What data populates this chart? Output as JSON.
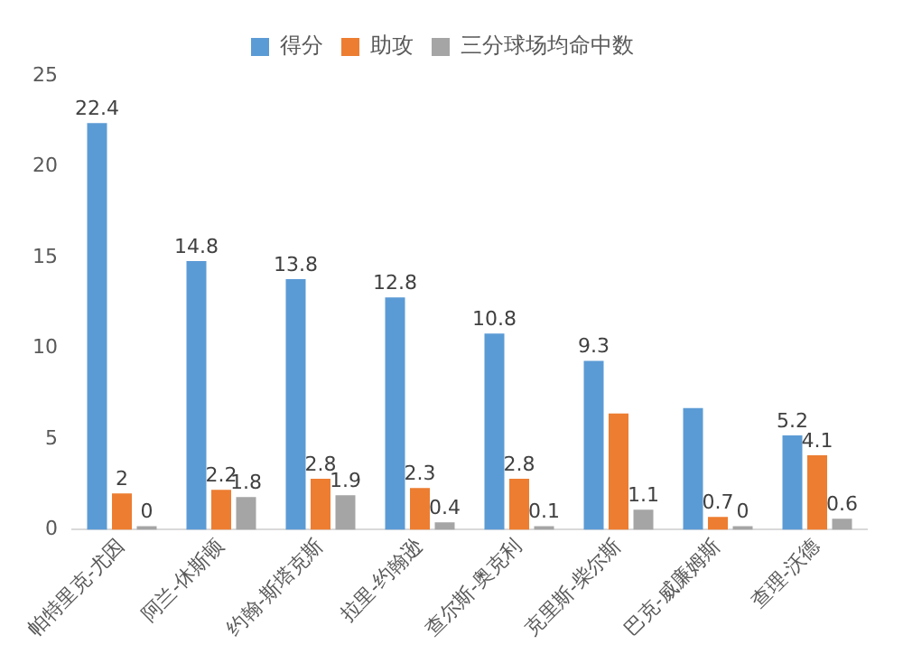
{
  "chart_data": {
    "type": "bar",
    "categories": [
      "帕特里克-尤因",
      "阿兰-休斯顿",
      "约翰-斯塔克斯",
      "拉里-约翰逊",
      "查尔斯-奥克利",
      "克里斯-柴尔斯",
      "巴克-威廉姆斯",
      "查理-沃德"
    ],
    "series": [
      {
        "name": "得分",
        "color": "#5b9bd5",
        "values": [
          22.4,
          14.8,
          13.8,
          12.8,
          10.8,
          9.3,
          6.7,
          5.2
        ],
        "value_labels": [
          "22.4",
          "14.8",
          "13.8",
          "12.8",
          "10.8",
          "9.3",
          null,
          "5.2"
        ]
      },
      {
        "name": "助攻",
        "color": "#ed7d31",
        "values": [
          2,
          2.2,
          2.8,
          2.3,
          2.8,
          6.4,
          0.7,
          4.1
        ],
        "value_labels": [
          "2",
          "2.2",
          "2.8",
          "2.3",
          "2.8",
          null,
          "0.7",
          "4.1"
        ]
      },
      {
        "name": "三分球场均命中数",
        "color": "#a5a5a5",
        "values": [
          0,
          1.8,
          1.9,
          0.4,
          0.1,
          1.1,
          0,
          0.6
        ],
        "value_labels": [
          "0",
          "1.8",
          "1.9",
          "0.4",
          "0.1",
          "1.1",
          "0",
          "0.6"
        ]
      }
    ],
    "ylim": [
      0,
      25
    ],
    "yticks": [
      0,
      5,
      10,
      15,
      20,
      25
    ],
    "grid": false,
    "legend": "top"
  }
}
